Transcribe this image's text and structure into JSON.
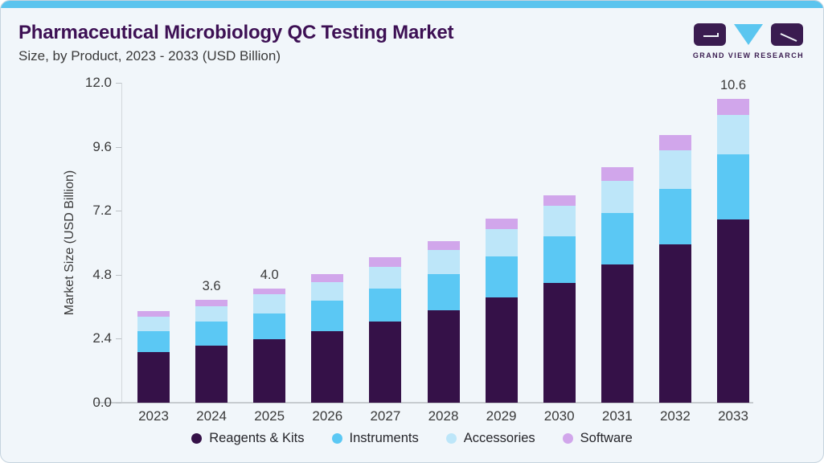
{
  "page": {
    "title": "Pharmaceutical Microbiology QC Testing Market",
    "subtitle": "Size, by Product, 2023 - 2033 (USD Billion)"
  },
  "logo": {
    "text": "GRAND VIEW RESEARCH"
  },
  "colors": {
    "accent_strip": "#5BC4EE",
    "title_text": "#3D1054",
    "body_text": "#3A3A3A",
    "card_bg": "#F1F6FA",
    "card_border": "#C5D3DE",
    "logo_dark": "#3A1C50",
    "logo_triangle": "#5BC6F0"
  },
  "chart_data": {
    "type": "bar",
    "stacked": true,
    "title": "Pharmaceutical Microbiology QC Testing Market Size, by Product, 2023 - 2033 (USD Billion)",
    "categories": [
      "2023",
      "2024",
      "2025",
      "2026",
      "2027",
      "2028",
      "2029",
      "2030",
      "2031",
      "2032",
      "2033"
    ],
    "series": [
      {
        "name": "Reagents & Kits",
        "color": "#351148",
        "values": [
          1.76,
          2.0,
          2.22,
          2.5,
          2.84,
          3.23,
          3.68,
          4.19,
          4.82,
          5.54,
          6.41
        ]
      },
      {
        "name": "Instruments",
        "color": "#5BC8F4",
        "values": [
          0.75,
          0.84,
          0.91,
          1.06,
          1.15,
          1.26,
          1.42,
          1.63,
          1.81,
          1.93,
          2.27
        ]
      },
      {
        "name": "Accessories",
        "color": "#BDE6F9",
        "values": [
          0.5,
          0.54,
          0.66,
          0.65,
          0.77,
          0.86,
          0.96,
          1.07,
          1.12,
          1.36,
          1.38
        ]
      },
      {
        "name": "Software",
        "color": "#D1A6EB",
        "values": [
          0.2,
          0.22,
          0.21,
          0.28,
          0.32,
          0.29,
          0.37,
          0.36,
          0.47,
          0.51,
          0.56
        ]
      }
    ],
    "totals": [
      3.2,
      3.6,
      4.0,
      4.5,
      5.1,
      5.6,
      6.4,
      7.3,
      8.2,
      9.3,
      10.6
    ],
    "total_labels": [
      "",
      "3.6",
      "4.0",
      "",
      "",
      "",
      "",
      "",
      "",
      "",
      "10.6"
    ],
    "ylabel": "Market Size (USD Billion)",
    "yticks": [
      "0.0",
      "2.4",
      "4.8",
      "7.2",
      "9.6",
      "12.0"
    ],
    "ylim": [
      0,
      12
    ],
    "grid": false,
    "legend_position": "bottom"
  }
}
